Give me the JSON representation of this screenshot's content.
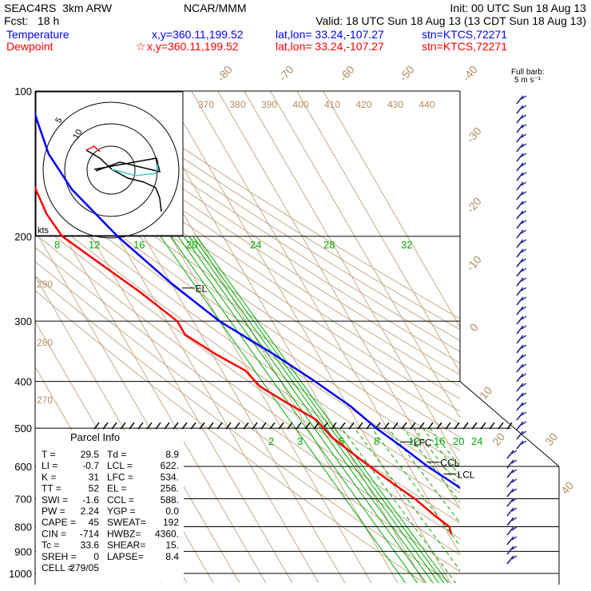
{
  "header": {
    "model": "SEAC4RS  3km ARW",
    "org": "NCAR/MMM",
    "init": "Init: 00 UTC Sun 18 Aug 13",
    "fcst": "Fcst:   18 h",
    "valid": "Valid: 18 UTC Sun 18 Aug 13 (13 CDT Sun 18 Aug 13)",
    "temp_label": "Temperature",
    "temp_xy": "x,y=360.11,199.52",
    "temp_latlon": "lat,lon= 33.24,-107.27",
    "temp_stn": "stn=KTCS,72271",
    "dew_label": "Dewpoint",
    "dew_xy": "x,y=360.11,199.52",
    "dew_latlon": "lat,lon= 33.24,-107.27",
    "dew_stn": "stn=KTCS,72271"
  },
  "colors": {
    "temperature": "#0000ff",
    "dewpoint": "#ff0000",
    "isotherm": "#c8a888",
    "mixing_ratio": "#00aa00",
    "theta_label": "#b48c64"
  },
  "barb_legend": [
    "Full barb:",
    "5 m s⁻¹"
  ],
  "hodograph": {
    "units": "kts",
    "ring_labels": [
      "5",
      "10"
    ]
  },
  "parcel_info": {
    "title": "Parcel Info",
    "rows": [
      [
        "T  =",
        "29.5",
        "Td =",
        "8.9"
      ],
      [
        "LI =",
        "-0.7",
        "LCL =",
        "622."
      ],
      [
        "K  =",
        "31",
        "LFC =",
        "534."
      ],
      [
        "TT =",
        "52",
        "EL =",
        "256."
      ],
      [
        "SWI =",
        "-1.6",
        "CCL =",
        "588."
      ],
      [
        "PW =",
        "2.24",
        "YGP =",
        "0.0"
      ],
      [
        "CAPE =",
        "45",
        "SWEAT=",
        "192"
      ],
      [
        "CIN =",
        "-714",
        "HWBZ=",
        "4360."
      ],
      [
        "Tc =",
        "33.6",
        "SHEAR=",
        "15."
      ],
      [
        "SREH =",
        "0",
        "LAPSE=",
        "8.4"
      ],
      [
        "CELL =",
        "279/05",
        "",
        ""
      ]
    ]
  },
  "chart_data": {
    "type": "line",
    "title": "",
    "pressure_levels": [
      100,
      200,
      300,
      400,
      500,
      600,
      700,
      800,
      900,
      1000
    ],
    "pressure_tick_labels": [
      "100",
      "200",
      "300",
      "400",
      "500",
      "600",
      "700",
      "800",
      "900",
      "1000"
    ],
    "isotherm_labels": [
      "-80",
      "-70",
      "-60",
      "-50",
      "-40",
      "-30",
      "-20",
      "-10",
      "0",
      "10",
      "20",
      "30",
      "40"
    ],
    "theta_labels_top": [
      "370",
      "380",
      "390",
      "400",
      "410",
      "420",
      "430",
      "440"
    ],
    "theta_labels_left": [
      "290",
      "280",
      "270"
    ],
    "mixing_ratio_labels_upper": [
      "8",
      "12",
      "16",
      "20",
      "24",
      "28",
      "32"
    ],
    "mixing_ratio_labels_lower": [
      "2",
      "3",
      "5",
      "8",
      "12",
      "16",
      "20",
      "24"
    ],
    "level_markers": [
      {
        "name": "EL",
        "pressure": 256
      },
      {
        "name": "LFC",
        "pressure": 534
      },
      {
        "name": "CCL",
        "pressure": 588
      },
      {
        "name": "LCL",
        "pressure": 622
      }
    ],
    "series": [
      {
        "name": "Temperature",
        "points": [
          [
            100,
            -62
          ],
          [
            115,
            -65
          ],
          [
            135,
            -68
          ],
          [
            160,
            -67
          ],
          [
            200,
            -60
          ],
          [
            250,
            -50
          ],
          [
            300,
            -40
          ],
          [
            350,
            -27
          ],
          [
            400,
            -17
          ],
          [
            450,
            -9
          ],
          [
            500,
            -4
          ],
          [
            550,
            2
          ],
          [
            600,
            7
          ],
          [
            650,
            13
          ],
          [
            700,
            18
          ],
          [
            750,
            22
          ],
          [
            800,
            26
          ],
          [
            850,
            30
          ]
        ]
      },
      {
        "name": "Dewpoint",
        "points": [
          [
            100,
            -86
          ],
          [
            120,
            -82
          ],
          [
            150,
            -80
          ],
          [
            180,
            -82
          ],
          [
            200,
            -81
          ],
          [
            230,
            -72
          ],
          [
            260,
            -64
          ],
          [
            300,
            -56
          ],
          [
            320,
            -56
          ],
          [
            350,
            -49
          ],
          [
            380,
            -41
          ],
          [
            410,
            -39
          ],
          [
            440,
            -33
          ],
          [
            480,
            -25
          ],
          [
            520,
            -23
          ],
          [
            560,
            -19
          ],
          [
            600,
            -15
          ],
          [
            650,
            -10
          ],
          [
            700,
            -5
          ],
          [
            760,
            -1
          ],
          [
            800,
            2
          ],
          [
            830,
            1
          ]
        ]
      }
    ]
  }
}
